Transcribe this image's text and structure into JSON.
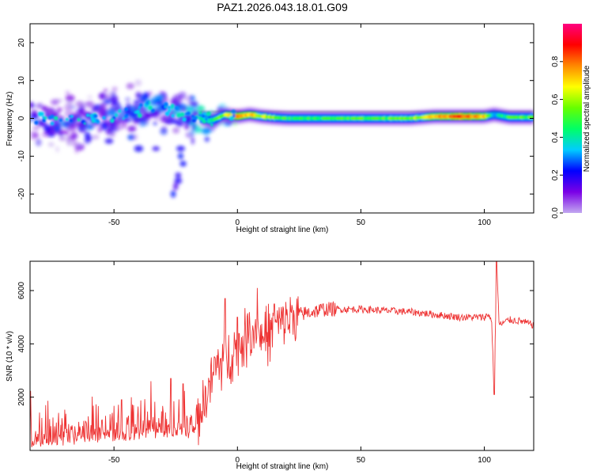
{
  "title": "PAZ1.2026.043.18.01.G09",
  "chart_data": [
    {
      "type": "heatmap",
      "id": "spectrogram",
      "xlabel": "Height of straight line (km)",
      "ylabel": "Frequency (Hz)",
      "xlim": [
        -84,
        120
      ],
      "ylim": [
        -25,
        25
      ],
      "xticks": [
        -50,
        0,
        50,
        100
      ],
      "yticks": [
        -20,
        -10,
        0,
        10,
        20
      ],
      "colorbar": {
        "label": "Normalized spectral amplitude",
        "range": [
          0.0,
          1.0
        ],
        "ticks": [
          "0.0",
          "0.2",
          "0.4",
          "0.6",
          "0.8"
        ],
        "tick_values": [
          0.0,
          0.2,
          0.4,
          0.6,
          0.8
        ],
        "colors": [
          "#c2a8f0",
          "#7a00e6",
          "#0000ff",
          "#00ccff",
          "#00ff66",
          "#66ff00",
          "#ffff00",
          "#ff8800",
          "#ff0000",
          "#ff0080"
        ]
      },
      "ridge": {
        "x": [
          -84,
          -70,
          -55,
          -45,
          -38,
          -32,
          -26,
          -20,
          -15,
          -10,
          -5,
          0,
          5,
          10,
          15,
          20,
          30,
          40,
          50,
          60,
          70,
          80,
          90,
          100,
          104,
          110,
          120
        ],
        "y": [
          0.5,
          -1,
          0.5,
          1,
          2.5,
          3.5,
          2,
          0.5,
          0,
          -0.5,
          1,
          0.5,
          1,
          0.5,
          0.2,
          0,
          0,
          0,
          0,
          0,
          0,
          0.5,
          0.5,
          0.5,
          1,
          0.3,
          0.3
        ],
        "amplitude": [
          0.25,
          0.25,
          0.25,
          0.25,
          0.3,
          0.3,
          0.3,
          0.3,
          0.35,
          0.4,
          0.6,
          0.8,
          0.7,
          0.6,
          0.55,
          0.45,
          0.45,
          0.5,
          0.5,
          0.5,
          0.55,
          0.7,
          0.85,
          0.7,
          0.3,
          0.5,
          0.5
        ]
      }
    },
    {
      "type": "line",
      "id": "snr",
      "xlabel": "Height of straight line (km)",
      "ylabel": "SNR (10 * v/v)",
      "color": "#ee3333",
      "xlim": [
        -84,
        120
      ],
      "ylim": [
        0,
        7100
      ],
      "xticks": [
        -50,
        0,
        50,
        100
      ],
      "yticks": [
        2000,
        4000,
        6000
      ],
      "series": [
        {
          "name": "SNR",
          "x": [
            -84,
            -70,
            -60,
            -50,
            -40,
            -30,
            -25,
            -20,
            -17,
            -15,
            -12,
            -10,
            -8,
            -5,
            -2,
            0,
            2,
            5,
            8,
            10,
            15,
            20,
            25,
            30,
            35,
            40,
            50,
            60,
            70,
            80,
            90,
            100,
            102,
            103,
            104,
            105,
            106,
            110,
            115,
            120
          ],
          "y": [
            500,
            500,
            550,
            650,
            750,
            850,
            850,
            800,
            1000,
            1500,
            2200,
            2800,
            3200,
            3500,
            3700,
            3900,
            4100,
            4400,
            4600,
            4200,
            4600,
            4900,
            5100,
            5200,
            5300,
            5300,
            5300,
            5250,
            5200,
            5100,
            5000,
            5000,
            5100,
            4800,
            2200,
            7100,
            4700,
            4900,
            4850,
            4700
          ]
        }
      ],
      "peaks": {
        "x": [
          -47,
          -43,
          -35,
          -27,
          -22,
          -5,
          0,
          8,
          15,
          20
        ],
        "y": [
          1900,
          2000,
          2600,
          2700,
          2500,
          5700,
          5000,
          6100,
          5500,
          5300
        ]
      }
    }
  ]
}
